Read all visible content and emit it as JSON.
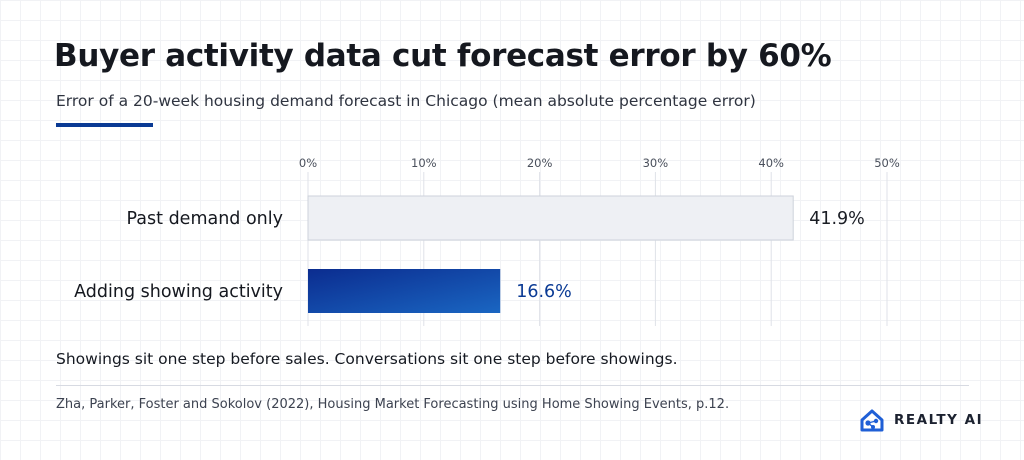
{
  "header": {
    "title": "Buyer activity data cut forecast error by 60%",
    "subtitle": "Error of a 20-week housing demand forecast in Chicago (mean absolute percentage error)"
  },
  "chart_data": {
    "type": "bar",
    "orientation": "horizontal",
    "categories": [
      "Past demand only",
      "Adding showing activity"
    ],
    "values": [
      41.9,
      16.6
    ],
    "value_labels": [
      "41.9%",
      "16.6%"
    ],
    "xlim": [
      0,
      50
    ],
    "x_ticks": [
      0,
      10,
      20,
      30,
      40,
      50
    ],
    "x_tick_labels": [
      "0%",
      "10%",
      "20%",
      "30%",
      "40%",
      "50%"
    ],
    "axis_position": "top",
    "grid": true,
    "colors": [
      "#eef0f4",
      "#0a3a94"
    ],
    "label_colors": [
      "#1a1d24",
      "#0a3a94"
    ]
  },
  "footer": {
    "note": "Showings sit one step before sales. Conversations sit one step before showings.",
    "source": "Zha, Parker, Foster and Sokolov (2022), Housing Market Forecasting using Home Showing Events, p.12."
  },
  "brand": {
    "name": "REALTY AI",
    "logo_icon": "house-network-icon",
    "color": "#1f5fd6"
  }
}
